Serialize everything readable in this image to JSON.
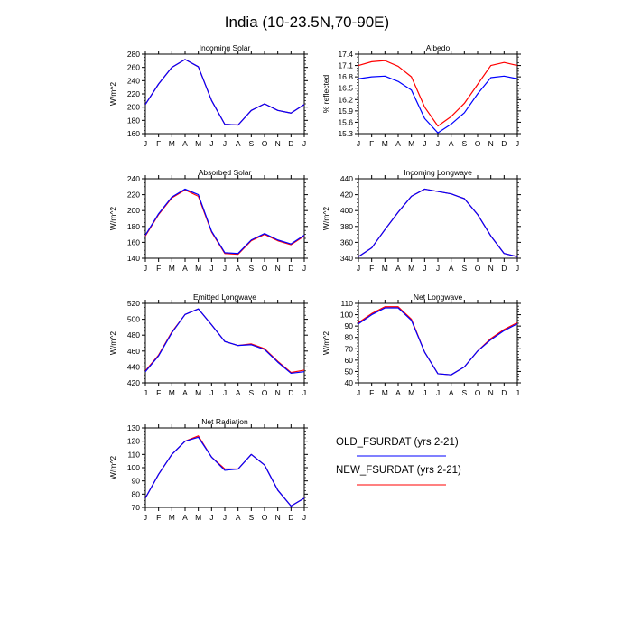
{
  "title": "India (10-23.5N,70-90E)",
  "months": [
    "J",
    "F",
    "M",
    "A",
    "M",
    "J",
    "J",
    "A",
    "S",
    "O",
    "N",
    "D",
    "J"
  ],
  "colors": {
    "old": "#0000ff",
    "new": "#ff0000"
  },
  "legend": {
    "old_label": "OLD_FSURDAT (yrs 2-21)",
    "new_label": "NEW_FSURDAT (yrs 2-21)"
  },
  "chart_data": [
    {
      "type": "line",
      "title": "Incoming Solar",
      "ylabel": "W/m^2",
      "ylim": [
        160,
        280
      ],
      "yticks": [
        "160",
        "180",
        "200",
        "220",
        "240",
        "260",
        "280"
      ],
      "x": [
        "J",
        "F",
        "M",
        "A",
        "M",
        "J",
        "J",
        "A",
        "S",
        "O",
        "N",
        "D",
        "J"
      ],
      "series": [
        {
          "name": "OLD_FSURDAT (yrs 2-21)",
          "values": [
            204,
            235,
            260,
            272,
            261,
            210,
            174,
            173,
            195,
            205,
            195,
            191,
            204
          ]
        },
        {
          "name": "NEW_FSURDAT (yrs 2-21)",
          "values": [
            204,
            235,
            260,
            272,
            261,
            210,
            174,
            173,
            195,
            205,
            195,
            191,
            204
          ]
        }
      ]
    },
    {
      "type": "line",
      "title": "Albedo",
      "ylabel": "% reflected",
      "ylim": [
        15.3,
        17.4
      ],
      "yticks": [
        "15.3",
        "15.6",
        "15.9",
        "16.2",
        "16.5",
        "16.8",
        "17.1",
        "17.4"
      ],
      "x": [
        "J",
        "F",
        "M",
        "A",
        "M",
        "J",
        "J",
        "A",
        "S",
        "O",
        "N",
        "D",
        "J"
      ],
      "series": [
        {
          "name": "OLD_FSURDAT (yrs 2-21)",
          "values": [
            16.75,
            16.8,
            16.82,
            16.68,
            16.45,
            15.7,
            15.32,
            15.55,
            15.85,
            16.35,
            16.78,
            16.82,
            16.75
          ]
        },
        {
          "name": "NEW_FSURDAT (yrs 2-21)",
          "values": [
            17.1,
            17.2,
            17.23,
            17.08,
            16.8,
            16.0,
            15.5,
            15.75,
            16.1,
            16.6,
            17.1,
            17.18,
            17.1
          ]
        }
      ]
    },
    {
      "type": "line",
      "title": "Absorbed Solar",
      "ylabel": "W/m^2",
      "ylim": [
        140,
        240
      ],
      "yticks": [
        "140",
        "160",
        "180",
        "200",
        "220",
        "240"
      ],
      "x": [
        "J",
        "F",
        "M",
        "A",
        "M",
        "J",
        "J",
        "A",
        "S",
        "O",
        "N",
        "D",
        "J"
      ],
      "series": [
        {
          "name": "OLD_FSURDAT (yrs 2-21)",
          "values": [
            169,
            196,
            217,
            227,
            220,
            174,
            147,
            146,
            163,
            171,
            163,
            158,
            169
          ]
        },
        {
          "name": "NEW_FSURDAT (yrs 2-21)",
          "values": [
            168,
            195,
            216,
            226,
            218,
            173,
            146,
            145,
            162,
            170,
            162,
            157,
            168
          ]
        }
      ]
    },
    {
      "type": "line",
      "title": "Incoming Longwave",
      "ylabel": "W/m^2",
      "ylim": [
        340,
        440
      ],
      "yticks": [
        "340",
        "360",
        "380",
        "400",
        "420",
        "440"
      ],
      "x": [
        "J",
        "F",
        "M",
        "A",
        "M",
        "J",
        "J",
        "A",
        "S",
        "O",
        "N",
        "D",
        "J"
      ],
      "series": [
        {
          "name": "OLD_FSURDAT (yrs 2-21)",
          "values": [
            342,
            353,
            376,
            398,
            418,
            427,
            424,
            421,
            415,
            395,
            368,
            346,
            342
          ]
        },
        {
          "name": "NEW_FSURDAT (yrs 2-21)",
          "values": [
            342,
            353,
            376,
            398,
            418,
            427,
            424,
            421,
            415,
            395,
            368,
            346,
            342
          ]
        }
      ]
    },
    {
      "type": "line",
      "title": "Emitted Longwave",
      "ylabel": "W/m^2",
      "ylim": [
        420,
        520
      ],
      "yticks": [
        "420",
        "440",
        "460",
        "480",
        "500",
        "520"
      ],
      "x": [
        "J",
        "F",
        "M",
        "A",
        "M",
        "J",
        "J",
        "A",
        "S",
        "O",
        "N",
        "D",
        "J"
      ],
      "series": [
        {
          "name": "OLD_FSURDAT (yrs 2-21)",
          "values": [
            434,
            454,
            483,
            506,
            513,
            493,
            472,
            467,
            468,
            462,
            446,
            432,
            434
          ]
        },
        {
          "name": "NEW_FSURDAT (yrs 2-21)",
          "values": [
            435,
            455,
            484,
            506,
            513,
            493,
            472,
            467,
            469,
            463,
            447,
            433,
            436
          ]
        }
      ]
    },
    {
      "type": "line",
      "title": "Net Longwave",
      "ylabel": "W/m^2",
      "ylim": [
        40,
        110
      ],
      "yticks": [
        "40",
        "50",
        "60",
        "70",
        "80",
        "90",
        "100",
        "110"
      ],
      "x": [
        "J",
        "F",
        "M",
        "A",
        "M",
        "J",
        "J",
        "A",
        "S",
        "O",
        "N",
        "D",
        "J"
      ],
      "series": [
        {
          "name": "OLD_FSURDAT (yrs 2-21)",
          "values": [
            92,
            100,
            106,
            106,
            95,
            67,
            48,
            47,
            54,
            68,
            78,
            86,
            92
          ]
        },
        {
          "name": "NEW_FSURDAT (yrs 2-21)",
          "values": [
            93,
            101,
            107,
            107,
            96,
            67,
            48,
            47,
            54,
            68,
            79,
            87,
            93
          ]
        }
      ]
    },
    {
      "type": "line",
      "title": "Net Radiation",
      "ylabel": "W/m^2",
      "ylim": [
        70,
        130
      ],
      "yticks": [
        "70",
        "80",
        "90",
        "100",
        "110",
        "120",
        "130"
      ],
      "x": [
        "J",
        "F",
        "M",
        "A",
        "M",
        "J",
        "J",
        "A",
        "S",
        "O",
        "N",
        "D",
        "J"
      ],
      "series": [
        {
          "name": "OLD_FSURDAT (yrs 2-21)",
          "values": [
            77,
            95,
            110,
            120,
            123,
            108,
            98,
            99,
            110,
            102,
            83,
            71,
            77
          ]
        },
        {
          "name": "NEW_FSURDAT (yrs 2-21)",
          "values": [
            77,
            95,
            110,
            120,
            124,
            108,
            99,
            99,
            110,
            102,
            83,
            71,
            77
          ]
        }
      ]
    }
  ]
}
